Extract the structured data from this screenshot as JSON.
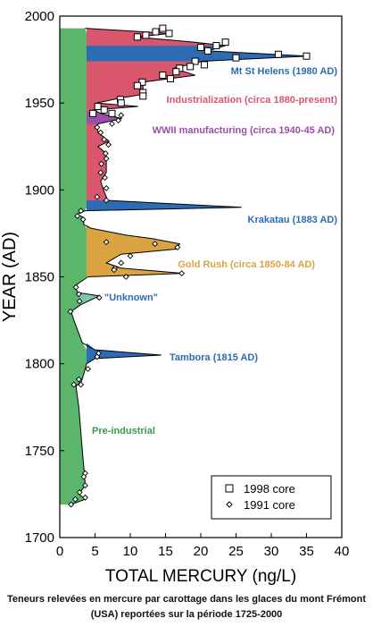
{
  "chart_data": {
    "type": "area",
    "xlabel": "TOTAL MERCURY (ng/L)",
    "ylabel": "YEAR (AD)",
    "xlim": [
      0,
      40
    ],
    "ylim": [
      1700,
      2000
    ],
    "xticks": [
      0,
      5,
      10,
      15,
      20,
      25,
      30,
      35,
      40
    ],
    "yticks": [
      1700,
      1750,
      1800,
      1850,
      1900,
      1950,
      2000
    ],
    "grid": false,
    "legend_position": "bottom-right",
    "legend": [
      {
        "marker": "square",
        "label": "1998 core"
      },
      {
        "marker": "diamond",
        "label": "1991 core"
      }
    ],
    "profile": [
      {
        "year": 1719,
        "hg": 1.6
      },
      {
        "year": 1722,
        "hg": 3.6
      },
      {
        "year": 1725,
        "hg": 2.7
      },
      {
        "year": 1730,
        "hg": 3.6
      },
      {
        "year": 1737,
        "hg": 3.5
      },
      {
        "year": 1745,
        "hg": 3.3
      },
      {
        "year": 1760,
        "hg": 3.0
      },
      {
        "year": 1775,
        "hg": 2.7
      },
      {
        "year": 1787,
        "hg": 2.3
      },
      {
        "year": 1790,
        "hg": 3.1
      },
      {
        "year": 1797,
        "hg": 3.6
      },
      {
        "year": 1800,
        "hg": 3.8
      },
      {
        "year": 1803,
        "hg": 5.0
      },
      {
        "year": 1805,
        "hg": 14.4
      },
      {
        "year": 1808,
        "hg": 5.0
      },
      {
        "year": 1812,
        "hg": 3.2
      },
      {
        "year": 1825,
        "hg": 2.0
      },
      {
        "year": 1830,
        "hg": 1.6
      },
      {
        "year": 1834,
        "hg": 3.0
      },
      {
        "year": 1839,
        "hg": 5.6
      },
      {
        "year": 1841,
        "hg": 2.5
      },
      {
        "year": 1845,
        "hg": 2.2
      },
      {
        "year": 1850,
        "hg": 4.0
      },
      {
        "year": 1852,
        "hg": 17.5
      },
      {
        "year": 1855,
        "hg": 8.7
      },
      {
        "year": 1858,
        "hg": 6.6
      },
      {
        "year": 1863,
        "hg": 8.7
      },
      {
        "year": 1866,
        "hg": 16.6
      },
      {
        "year": 1869,
        "hg": 17.0
      },
      {
        "year": 1872,
        "hg": 13.1
      },
      {
        "year": 1874,
        "hg": 9.4
      },
      {
        "year": 1878,
        "hg": 4.4
      },
      {
        "year": 1880,
        "hg": 3.4
      },
      {
        "year": 1884,
        "hg": 3.4
      },
      {
        "year": 1886,
        "hg": 2.5
      },
      {
        "year": 1888,
        "hg": 3.6
      },
      {
        "year": 1890,
        "hg": 25.8
      },
      {
        "year": 1894,
        "hg": 6.8
      },
      {
        "year": 1899,
        "hg": 6.3
      },
      {
        "year": 1905,
        "hg": 5.8
      },
      {
        "year": 1910,
        "hg": 6.6
      },
      {
        "year": 1915,
        "hg": 6.6
      },
      {
        "year": 1918,
        "hg": 6.6
      },
      {
        "year": 1922,
        "hg": 6.3
      },
      {
        "year": 1925,
        "hg": 5.4
      },
      {
        "year": 1928,
        "hg": 7.0
      },
      {
        "year": 1933,
        "hg": 5.4
      },
      {
        "year": 1938,
        "hg": 5.4
      },
      {
        "year": 1941,
        "hg": 8.8
      },
      {
        "year": 1944,
        "hg": 5.8
      },
      {
        "year": 1946,
        "hg": 4.8
      },
      {
        "year": 1948,
        "hg": 11.1
      },
      {
        "year": 1950,
        "hg": 5.2
      },
      {
        "year": 1953,
        "hg": 8.8
      },
      {
        "year": 1955,
        "hg": 11.8
      },
      {
        "year": 1959,
        "hg": 11.8
      },
      {
        "year": 1962,
        "hg": 11.8
      },
      {
        "year": 1966,
        "hg": 19.2
      },
      {
        "year": 1970,
        "hg": 16.2
      },
      {
        "year": 1974,
        "hg": 20.2
      },
      {
        "year": 1977,
        "hg": 35.2
      },
      {
        "year": 1980,
        "hg": 21.0
      },
      {
        "year": 1983,
        "hg": 23.5
      },
      {
        "year": 1985,
        "hg": 19.0
      },
      {
        "year": 1988,
        "hg": 10.8
      },
      {
        "year": 1990,
        "hg": 15.6
      },
      {
        "year": 1993,
        "hg": 3.6
      }
    ],
    "baseline_hg": 3.8,
    "baseline_start_year": 1800,
    "regions": [
      {
        "label": "Pre-industrial",
        "color": "#5bb56a",
        "label_color": "#3a9a4a"
      },
      {
        "label": "Industrialization (circa 1880-present)",
        "color": "#d9566c",
        "label_color": "#d9566c",
        "from": 1878,
        "to": 1993
      },
      {
        "label": "WWII manufacturing (circa 1940-45 AD)",
        "color": "#9a4fa6",
        "label_color": "#9a4fa6",
        "from": 1938,
        "to": 1945
      },
      {
        "label": "Gold Rush (circa 1850-84 AD)",
        "color": "#d9a441",
        "label_color": "#d9a441",
        "from": 1850,
        "to": 1880
      },
      {
        "label": "Krakatau (1883 AD)",
        "color": "#2d6bb5",
        "label_color": "#2d6bb5",
        "from": 1884,
        "to": 1894
      },
      {
        "label": "Mt St Helens (1980 AD)",
        "color": "#2d6bb5",
        "label_color": "#2d6bb5",
        "from": 1974,
        "to": 1983
      },
      {
        "label": "\"Unknown\"",
        "color": "#7fc6a4",
        "label_color": "#2d6bb5",
        "from": 1834,
        "to": 1841
      },
      {
        "label": "Tambora (1815 AD)",
        "color": "#2d6bb5",
        "label_color": "#2d6bb5",
        "from": 1797,
        "to": 1812
      }
    ],
    "core_1998": [
      [
        14.6,
        1993
      ],
      [
        13.6,
        1991
      ],
      [
        15.5,
        1990
      ],
      [
        12.2,
        1989
      ],
      [
        11.0,
        1988
      ],
      [
        23.5,
        1985
      ],
      [
        22.2,
        1983
      ],
      [
        21.0,
        1980
      ],
      [
        20.0,
        1982
      ],
      [
        31.0,
        1978
      ],
      [
        35.0,
        1977
      ],
      [
        25.0,
        1976
      ],
      [
        19.2,
        1974
      ],
      [
        20.5,
        1972
      ],
      [
        18.5,
        1971
      ],
      [
        17.0,
        1970
      ],
      [
        16.5,
        1968
      ],
      [
        14.6,
        1966
      ],
      [
        15.7,
        1964
      ],
      [
        11.7,
        1962
      ],
      [
        11.0,
        1960
      ],
      [
        11.8,
        1956
      ],
      [
        11.8,
        1954
      ],
      [
        8.6,
        1952
      ],
      [
        8.7,
        1950
      ],
      [
        5.4,
        1948
      ],
      [
        6.3,
        1946
      ],
      [
        4.7,
        1944
      ],
      [
        7.4,
        1944
      ]
    ],
    "core_1991": [
      [
        8.7,
        1943
      ],
      [
        8.3,
        1940
      ],
      [
        7.4,
        1938
      ],
      [
        5.3,
        1936
      ],
      [
        5.8,
        1933
      ],
      [
        6.3,
        1929
      ],
      [
        6.9,
        1926
      ],
      [
        6.5,
        1921
      ],
      [
        6.6,
        1918
      ],
      [
        5.9,
        1915
      ],
      [
        5.8,
        1910
      ],
      [
        6.4,
        1907
      ],
      [
        6.6,
        1901
      ],
      [
        5.3,
        1896
      ],
      [
        6.6,
        1894
      ],
      [
        3.0,
        1888
      ],
      [
        2.5,
        1885
      ],
      [
        3.3,
        1883
      ],
      [
        6.6,
        1870
      ],
      [
        13.5,
        1869
      ],
      [
        16.7,
        1867
      ],
      [
        10.0,
        1862
      ],
      [
        8.7,
        1858
      ],
      [
        7.8,
        1855
      ],
      [
        7.7,
        1854
      ],
      [
        17.3,
        1852
      ],
      [
        9.4,
        1850
      ],
      [
        2.3,
        1844
      ],
      [
        2.7,
        1840
      ],
      [
        5.6,
        1838
      ],
      [
        2.8,
        1836
      ],
      [
        1.5,
        1830
      ],
      [
        5.5,
        1806
      ],
      [
        5.3,
        1804
      ],
      [
        4.0,
        1797
      ],
      [
        2.7,
        1791
      ],
      [
        2.0,
        1788
      ],
      [
        3.0,
        1788
      ],
      [
        3.6,
        1737
      ],
      [
        3.4,
        1735
      ],
      [
        3.6,
        1730
      ],
      [
        2.8,
        1726
      ],
      [
        3.6,
        1723
      ],
      [
        2.2,
        1722
      ],
      [
        1.6,
        1719
      ]
    ]
  },
  "caption": {
    "line1": "Teneurs relevées en mercure par carottage dans les glaces du mont Frémont",
    "line2": "(USA) reportées sur la période 1725-2000"
  }
}
